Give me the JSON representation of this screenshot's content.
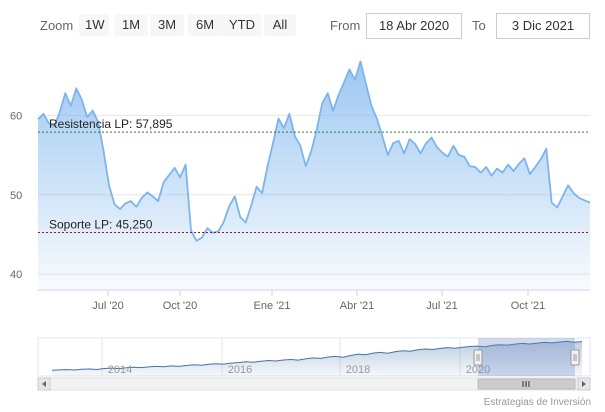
{
  "range_selector": {
    "zoom_label": "Zoom",
    "buttons": [
      "1W",
      "1M",
      "3M",
      "6M",
      "YTD",
      "All"
    ],
    "from_label": "From",
    "from_value": "18 Abr 2020",
    "to_label": "To",
    "to_value": "3 Dic 2021"
  },
  "chart_data": {
    "type": "area",
    "x_ticks": [
      "Jul '20",
      "Oct '20",
      "Ene '21",
      "Abr '21",
      "Jul '21",
      "Oct '21"
    ],
    "y_ticks": [
      40,
      50,
      60
    ],
    "ylim": [
      38,
      69
    ],
    "grid": true,
    "series": [
      {
        "values": [
          59.5,
          60.2,
          59.0,
          58.6,
          60.5,
          62.8,
          61.2,
          63.4,
          62.0,
          59.8,
          60.6,
          59.2,
          55.5,
          51.2,
          48.8,
          48.2,
          48.9,
          49.2,
          48.5,
          49.6,
          50.3,
          49.8,
          49.2,
          51.6,
          52.5,
          53.4,
          52.2,
          53.8,
          45.5,
          44.2,
          44.6,
          45.8,
          45.2,
          45.4,
          46.6,
          48.6,
          49.8,
          47.2,
          46.5,
          48.6,
          51.0,
          50.2,
          53.6,
          56.5,
          59.6,
          58.4,
          60.2,
          57.4,
          56.2,
          53.6,
          55.5,
          58.2,
          61.5,
          62.8,
          60.6,
          62.6,
          64.2,
          65.8,
          64.5,
          66.8,
          64.0,
          61.2,
          59.6,
          57.4,
          55.0,
          56.5,
          56.8,
          55.2,
          57.0,
          56.4,
          55.2,
          56.5,
          57.2,
          56.0,
          55.3,
          54.8,
          56.2,
          55.0,
          54.8,
          53.6,
          53.5,
          52.8,
          53.5,
          52.4,
          53.3,
          52.8,
          53.8,
          53.0,
          53.9,
          54.6,
          52.6,
          53.5,
          54.5,
          55.8,
          49.0,
          48.4,
          49.8,
          51.2,
          50.2,
          49.6,
          49.3,
          49.0
        ]
      }
    ],
    "annotations": [
      {
        "label": "Resistencia LP: 57,895",
        "value": 57.895,
        "color": "#2e7d32"
      },
      {
        "label": "Soporte LP: 45,250",
        "value": 45.25,
        "color": "#8b1a1a"
      }
    ]
  },
  "navigator": {
    "x_ticks": [
      "2014",
      "2016",
      "2018",
      "2020"
    ],
    "series": [
      30,
      30.5,
      31,
      30.2,
      31.5,
      32,
      31.2,
      32.8,
      33.5,
      32.6,
      34.2,
      35,
      34.4,
      35.6,
      36.5,
      35.8,
      37.2,
      36.4,
      38,
      39.2,
      38.5,
      40.2,
      41,
      40.3,
      42.1,
      43,
      44.5,
      43.6,
      45.2,
      46.5,
      45.6,
      47.4,
      48.3,
      47.2,
      49.6,
      51,
      50.1,
      52.5,
      53.6,
      52.2,
      55,
      57.5,
      56.4,
      59.1,
      60.3,
      59,
      61.8,
      63.2,
      62.4,
      64.8,
      66.1,
      65.3,
      67.2,
      68.5,
      67.6,
      69.2,
      70.5,
      71.2,
      70.1,
      72.4,
      73.6,
      72.8,
      74.5,
      75.8,
      74.7,
      76.2,
      77.5,
      76.6,
      78.2,
      79.1,
      77.8,
      78.8
    ]
  },
  "credits": "Estrategias de Inversión",
  "colors": {
    "line": "#7cb5ec",
    "selection": "rgba(102,133,194,0.3)"
  }
}
